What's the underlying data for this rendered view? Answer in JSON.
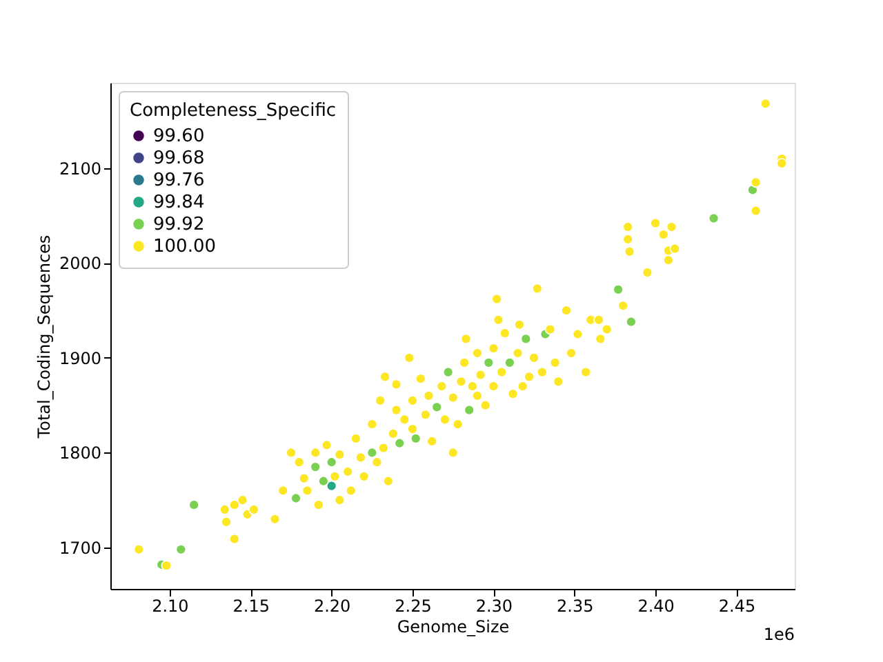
{
  "chart_data": {
    "type": "scatter",
    "xlabel": "Genome_Size",
    "ylabel": "Total_Coding_Sequences",
    "legend_title": "Completeness_Specific",
    "legend": "top left",
    "grid": false,
    "marker": "circle",
    "annotations": [
      "1e6"
    ],
    "xlim": [
      2.0634,
      2.486
    ],
    "ylim": [
      1656.4,
      2190
    ],
    "xticks": [
      {
        "value": 2.1,
        "label": "2.10"
      },
      {
        "value": 2.15,
        "label": "2.15"
      },
      {
        "value": 2.2,
        "label": "2.20"
      },
      {
        "value": 2.25,
        "label": "2.25"
      },
      {
        "value": 2.3,
        "label": "2.30"
      },
      {
        "value": 2.35,
        "label": "2.35"
      },
      {
        "value": 2.4,
        "label": "2.40"
      },
      {
        "value": 2.45,
        "label": "2.45"
      }
    ],
    "yticks": [
      1700,
      1800,
      1900,
      2000,
      2100
    ],
    "series": [
      {
        "name": "99.60",
        "color": "#440154"
      },
      {
        "name": "99.68",
        "color": "#414487"
      },
      {
        "name": "99.76",
        "color": "#2a788e"
      },
      {
        "name": "99.84",
        "color": "#22a884",
        "x": [
          2.2
        ],
        "values": [
          1765
        ]
      },
      {
        "name": "99.92",
        "color": "#7ad151",
        "x": [
          2.095,
          2.107,
          2.115,
          2.178,
          2.19,
          2.195,
          2.2,
          2.225,
          2.242,
          2.252,
          2.265,
          2.272,
          2.285,
          2.297,
          2.31,
          2.32,
          2.332,
          2.377,
          2.385,
          2.436,
          2.46
        ],
        "values": [
          1682,
          1698,
          1745,
          1752,
          1785,
          1770,
          1790,
          1800,
          1810,
          1815,
          1848,
          1885,
          1845,
          1895,
          1895,
          1920,
          1925,
          1972,
          1938,
          2047,
          2077
        ]
      },
      {
        "name": "100.00",
        "color": "#fde725",
        "x": [
          2.081,
          2.098,
          2.134,
          2.135,
          2.14,
          2.14,
          2.145,
          2.148,
          2.152,
          2.165,
          2.17,
          2.175,
          2.18,
          2.183,
          2.185,
          2.19,
          2.192,
          2.197,
          2.202,
          2.205,
          2.205,
          2.21,
          2.212,
          2.215,
          2.218,
          2.22,
          2.225,
          2.228,
          2.23,
          2.232,
          2.233,
          2.235,
          2.238,
          2.24,
          2.24,
          2.245,
          2.248,
          2.25,
          2.25,
          2.255,
          2.258,
          2.26,
          2.262,
          2.268,
          2.27,
          2.275,
          2.275,
          2.278,
          2.28,
          2.282,
          2.283,
          2.287,
          2.29,
          2.29,
          2.292,
          2.295,
          2.3,
          2.3,
          2.302,
          2.303,
          2.305,
          2.307,
          2.312,
          2.315,
          2.316,
          2.318,
          2.322,
          2.325,
          2.327,
          2.33,
          2.335,
          2.338,
          2.34,
          2.345,
          2.348,
          2.352,
          2.357,
          2.36,
          2.365,
          2.366,
          2.37,
          2.38,
          2.383,
          2.383,
          2.384,
          2.395,
          2.4,
          2.405,
          2.408,
          2.408,
          2.41,
          2.412,
          2.462,
          2.462,
          2.468,
          2.478,
          2.478
        ],
        "values": [
          1698,
          1681,
          1740,
          1727,
          1745,
          1709,
          1750,
          1735,
          1740,
          1730,
          1760,
          1800,
          1790,
          1773,
          1760,
          1800,
          1745,
          1808,
          1775,
          1750,
          1798,
          1780,
          1760,
          1815,
          1795,
          1775,
          1830,
          1790,
          1855,
          1805,
          1880,
          1770,
          1820,
          1845,
          1872,
          1835,
          1900,
          1855,
          1825,
          1878,
          1840,
          1860,
          1812,
          1870,
          1835,
          1800,
          1858,
          1830,
          1875,
          1895,
          1920,
          1870,
          1905,
          1860,
          1882,
          1850,
          1910,
          1870,
          1962,
          1940,
          1885,
          1926,
          1862,
          1905,
          1935,
          1870,
          1880,
          1900,
          1973,
          1885,
          1930,
          1895,
          1875,
          1950,
          1905,
          1925,
          1885,
          1940,
          1940,
          1920,
          1930,
          1955,
          2038,
          2025,
          2012,
          1990,
          2042,
          2030,
          2013,
          2003,
          2038,
          2015,
          2085,
          2055,
          2168,
          2110,
          2105
        ]
      }
    ]
  }
}
